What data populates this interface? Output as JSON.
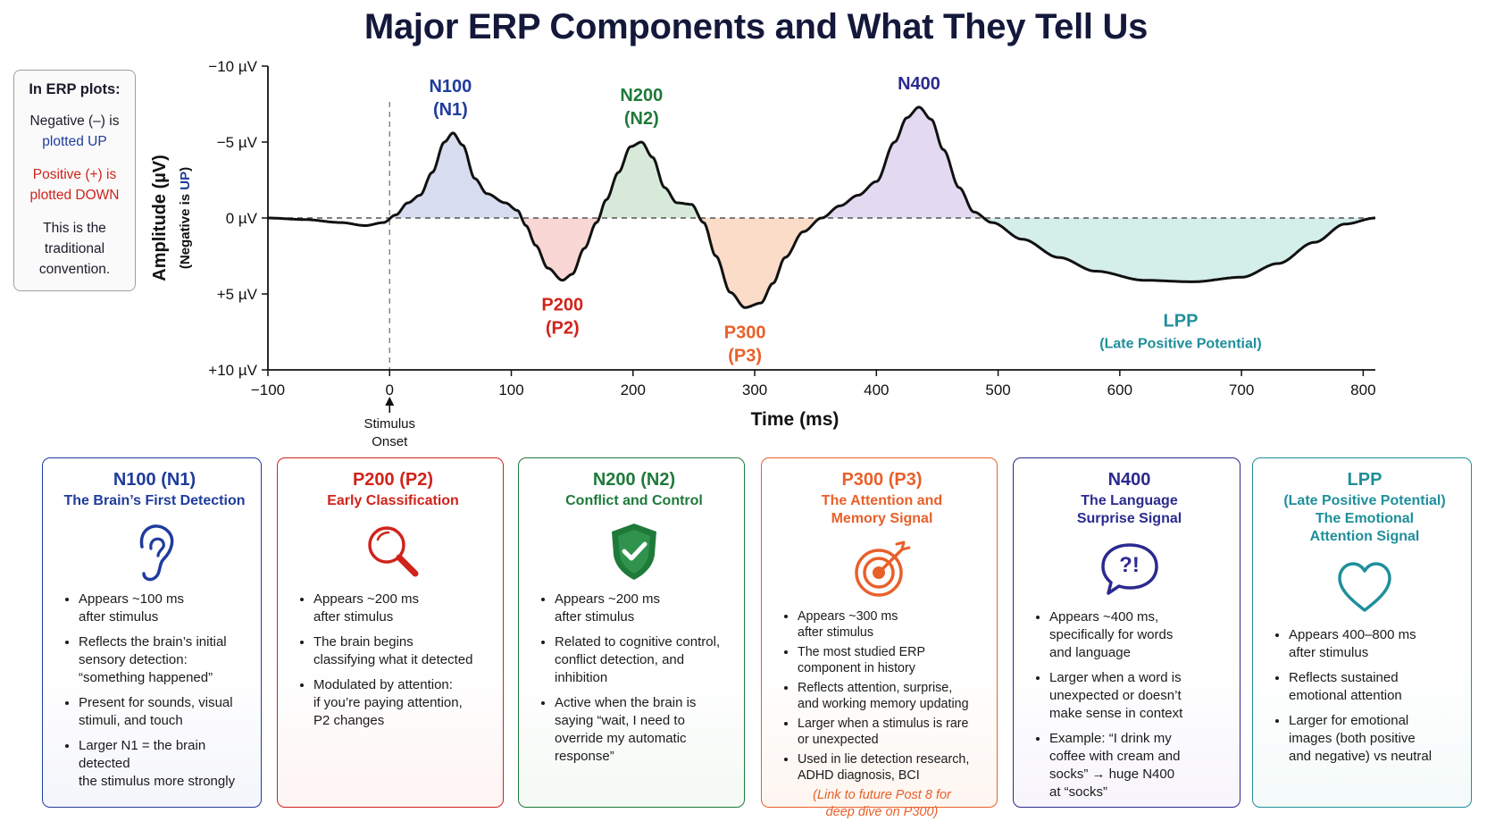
{
  "title": "Major ERP Components and What They Tell Us",
  "convention_box": {
    "heading": "In ERP plots:",
    "negative_line1": "Negative (–) is",
    "negative_line2": "plotted UP",
    "positive_line1": "Positive (+) is",
    "positive_line2": "plotted DOWN",
    "note_line1": "This is the",
    "note_line2": "traditional",
    "note_line3": "convention."
  },
  "colors": {
    "n100": "#1f3c9c",
    "p200": "#d0231b",
    "n200": "#1f7a3a",
    "p300": "#e8602a",
    "n400": "#2b2a8f",
    "lpp": "#1f8f9a",
    "n100_fill": "#c9d0ea",
    "p200_fill": "#f6c9c5",
    "n200_fill": "#c9e3cd",
    "p300_fill": "#f8d0b5",
    "n400_fill": "#d9cdee",
    "lpp_fill": "#c6e8e1"
  },
  "chart_data": {
    "type": "line",
    "xlabel": "Time (ms)",
    "ylabel": "Amplitude (µV)",
    "ylabel_sub_prefix": "(Negative is ",
    "ylabel_sub_highlight": "UP",
    "ylabel_sub_suffix": ")",
    "xlim": [
      -100,
      810
    ],
    "ylim": [
      -10,
      10
    ],
    "y_inverted": true,
    "x_ticks": [
      -100,
      0,
      100,
      200,
      300,
      400,
      500,
      600,
      700,
      800
    ],
    "x_tick_labels": [
      "−100",
      "0",
      "100",
      "200",
      "300",
      "400",
      "500",
      "600",
      "700",
      "800"
    ],
    "y_ticks": [
      -10,
      -5,
      0,
      5,
      10
    ],
    "y_tick_labels": [
      "−10 µV",
      "−5 µV",
      "0 µV",
      "+5 µV",
      "+10 µV"
    ],
    "stimulus_label_line1": "Stimulus",
    "stimulus_label_line2": "Onset",
    "waveform": {
      "x": [
        -100,
        -70,
        -40,
        -20,
        -5,
        5,
        15,
        25,
        35,
        45,
        52,
        60,
        70,
        80,
        95,
        105,
        112,
        120,
        130,
        142,
        150,
        160,
        170,
        178,
        188,
        198,
        207,
        216,
        226,
        236,
        248,
        258,
        268,
        280,
        292,
        305,
        315,
        325,
        340,
        355,
        370,
        385,
        400,
        415,
        425,
        435,
        445,
        455,
        468,
        480,
        495,
        520,
        550,
        580,
        620,
        660,
        700,
        730,
        760,
        785,
        810
      ],
      "y": [
        0,
        0.1,
        0.3,
        0.5,
        0.3,
        -0.2,
        -1.0,
        -1.5,
        -3.0,
        -5.0,
        -5.6,
        -4.8,
        -2.6,
        -1.6,
        -1.0,
        -0.5,
        0.5,
        1.8,
        3.3,
        4.1,
        3.7,
        2.0,
        0.3,
        -1.2,
        -3.0,
        -4.7,
        -5.0,
        -4.0,
        -2.0,
        -1.0,
        -0.9,
        0.3,
        2.5,
        4.9,
        5.9,
        5.6,
        4.3,
        2.6,
        0.9,
        0.0,
        -0.8,
        -1.5,
        -2.4,
        -5.0,
        -6.6,
        -7.3,
        -6.5,
        -4.5,
        -2.0,
        -0.4,
        0.3,
        1.4,
        2.6,
        3.5,
        4.1,
        4.2,
        3.9,
        3.0,
        1.6,
        0.4,
        0.0
      ]
    },
    "components": [
      {
        "label_line1": "N100",
        "label_line2": "(N1)",
        "x": 50,
        "y": -5.6
      },
      {
        "label_line1": "P200",
        "label_line2": "(P2)",
        "x": 142,
        "y": 4.1
      },
      {
        "label_line1": "N200",
        "label_line2": "(N2)",
        "x": 207,
        "y": -5.0
      },
      {
        "label_line1": "P300",
        "label_line2": "(P3)",
        "x": 292,
        "y": 5.9
      },
      {
        "label_line1": "N400",
        "label_line2": "",
        "x": 435,
        "y": -7.3
      },
      {
        "label_line1": "LPP",
        "label_line2": "(Late Positive Potential)",
        "x": 650,
        "y": 4.2
      }
    ]
  },
  "cards": [
    {
      "title": "N100 (N1)",
      "subtitle": "The Brain’s First Detection",
      "icon": "ear-icon",
      "bullets": [
        "Appears ~100 ms\nafter stimulus",
        "Reflects the brain’s initial\nsensory detection:\n“something happened”",
        "Present for sounds, visual\nstimuli, and touch",
        "Larger N1 = the brain detected\nthe stimulus more strongly"
      ]
    },
    {
      "title": "P200 (P2)",
      "subtitle": "Early Classification",
      "icon": "magnifier-icon",
      "bullets": [
        "Appears ~200 ms\nafter stimulus",
        "The brain begins\nclassifying what it detected",
        "Modulated by attention:\nif you’re paying attention,\nP2 changes"
      ]
    },
    {
      "title": "N200 (N2)",
      "subtitle": "Conflict and Control",
      "icon": "shield-check-icon",
      "bullets": [
        "Appears ~200 ms\nafter stimulus",
        "Related to cognitive control,\nconflict detection, and\ninhibition",
        "Active when the brain is\nsaying “wait, I need to\noverride my automatic\nresponse”"
      ]
    },
    {
      "title": "P300 (P3)",
      "subtitle": "The Attention and\nMemory Signal",
      "icon": "target-icon",
      "bullets": [
        "Appears ~300 ms\nafter stimulus",
        "The most studied ERP\ncomponent in history",
        "Reflects attention, surprise,\nand working memory updating",
        "Larger when a stimulus is rare\nor unexpected",
        "Used in lie detection research,\nADHD diagnosis, BCI"
      ],
      "note": "(Link to future Post 8 for\ndeep dive on P300)"
    },
    {
      "title": "N400",
      "subtitle": "The Language\nSurprise Signal",
      "icon": "speech-bubble-icon",
      "icon_text": "?!",
      "bullets": [
        "Appears ~400 ms,\nspecifically for words\nand language",
        "Larger when a word is\nunexpected or doesn’t\nmake sense in context",
        "Example: “I drink my\ncoffee with cream and\nsocks” → huge N400\nat “socks”"
      ]
    },
    {
      "title": "LPP",
      "subtitle": "(Late Positive Potential)\nThe Emotional\nAttention Signal",
      "icon": "heart-icon",
      "bullets": [
        "Appears 400–800 ms\nafter stimulus",
        "Reflects sustained\nemotional attention",
        "Larger for emotional\nimages (both positive\nand negative) vs neutral"
      ]
    }
  ]
}
